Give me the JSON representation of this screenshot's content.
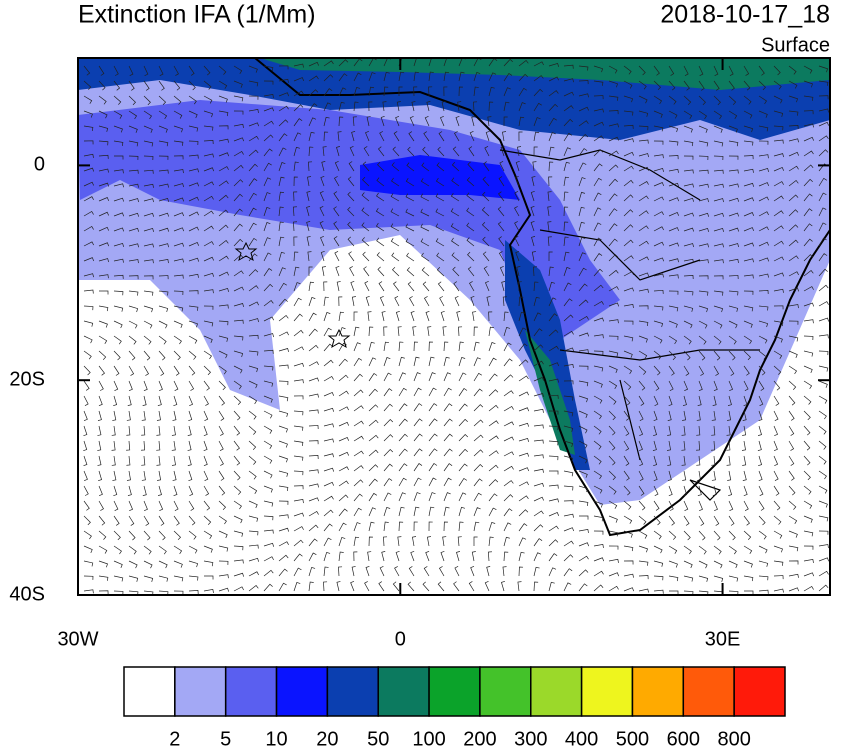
{
  "title": "Extinction IFA (1/Mm)",
  "timestamp": "2018-10-17_18",
  "level": "Surface",
  "map": {
    "xlim": [
      -30,
      40
    ],
    "ylim": [
      -40,
      10
    ],
    "lat_ticks": [
      {
        "value": 0,
        "label": "0"
      },
      {
        "value": -20,
        "label": "20S"
      },
      {
        "value": -40,
        "label": "40S"
      }
    ],
    "lon_ticks": [
      {
        "value": -30,
        "label": "30W"
      },
      {
        "value": 0,
        "label": "0"
      },
      {
        "value": 30,
        "label": "30E"
      }
    ]
  },
  "colorbar": {
    "colors": [
      "#ffffff",
      "#a3a8f5",
      "#5a5ff0",
      "#0a14ff",
      "#0b3fb0",
      "#0c7a5f",
      "#0ba32a",
      "#44c22a",
      "#9bd92a",
      "#eef51e",
      "#ffaa00",
      "#ff5a0a",
      "#ff1a0a"
    ],
    "ticks": [
      2,
      5,
      10,
      20,
      50,
      100,
      200,
      300,
      400,
      500,
      600,
      800
    ]
  }
}
